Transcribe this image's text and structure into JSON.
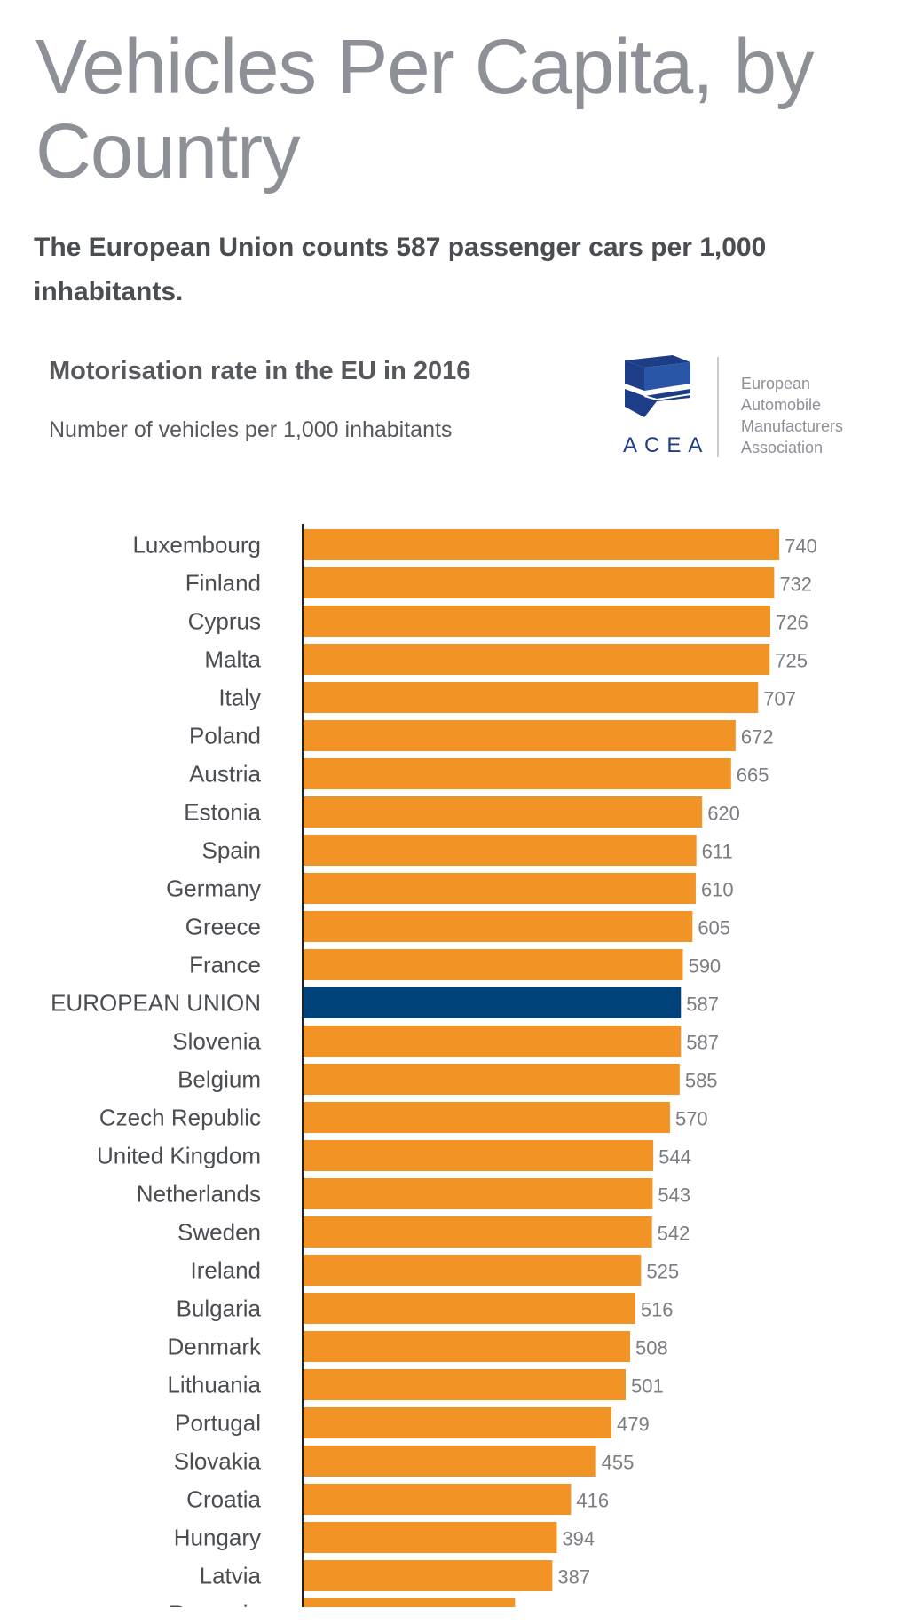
{
  "page": {
    "title": "Vehicles Per Capita, by Country",
    "subtitle": "The European Union counts 587 passenger cars per 1,000 inhabitants."
  },
  "logo": {
    "wordmark": "ACEA",
    "organization_lines": [
      "European",
      "Automobile",
      "Manufacturers",
      "Association"
    ],
    "icon": "acea-cube-logo",
    "color": "#1d3e87"
  },
  "colors": {
    "bar": "#f29425",
    "highlight_bar": "#00437a",
    "axis": "#222222"
  },
  "chart_data": {
    "type": "bar",
    "orientation": "horizontal",
    "title": "Motorisation rate in the EU in 2016",
    "subtitle": "Number of vehicles per 1,000 inhabitants",
    "xlabel": "",
    "ylabel": "",
    "xlim": [
      0,
      810
    ],
    "grid": false,
    "highlight_category": "EUROPEAN UNION",
    "categories": [
      "Luxembourg",
      "Finland",
      "Cyprus",
      "Malta",
      "Italy",
      "Poland",
      "Austria",
      "Estonia",
      "Spain",
      "Germany",
      "Greece",
      "France",
      "EUROPEAN UNION",
      "Slovenia",
      "Belgium",
      "Czech Republic",
      "United Kingdom",
      "Netherlands",
      "Sweden",
      "Ireland",
      "Bulgaria",
      "Denmark",
      "Lithuania",
      "Portugal",
      "Slovakia",
      "Croatia",
      "Hungary",
      "Latvia",
      "Romania"
    ],
    "values": [
      740,
      732,
      726,
      725,
      707,
      672,
      665,
      620,
      611,
      610,
      605,
      590,
      587,
      587,
      585,
      570,
      544,
      543,
      542,
      525,
      516,
      508,
      501,
      479,
      455,
      416,
      394,
      387,
      329
    ]
  }
}
